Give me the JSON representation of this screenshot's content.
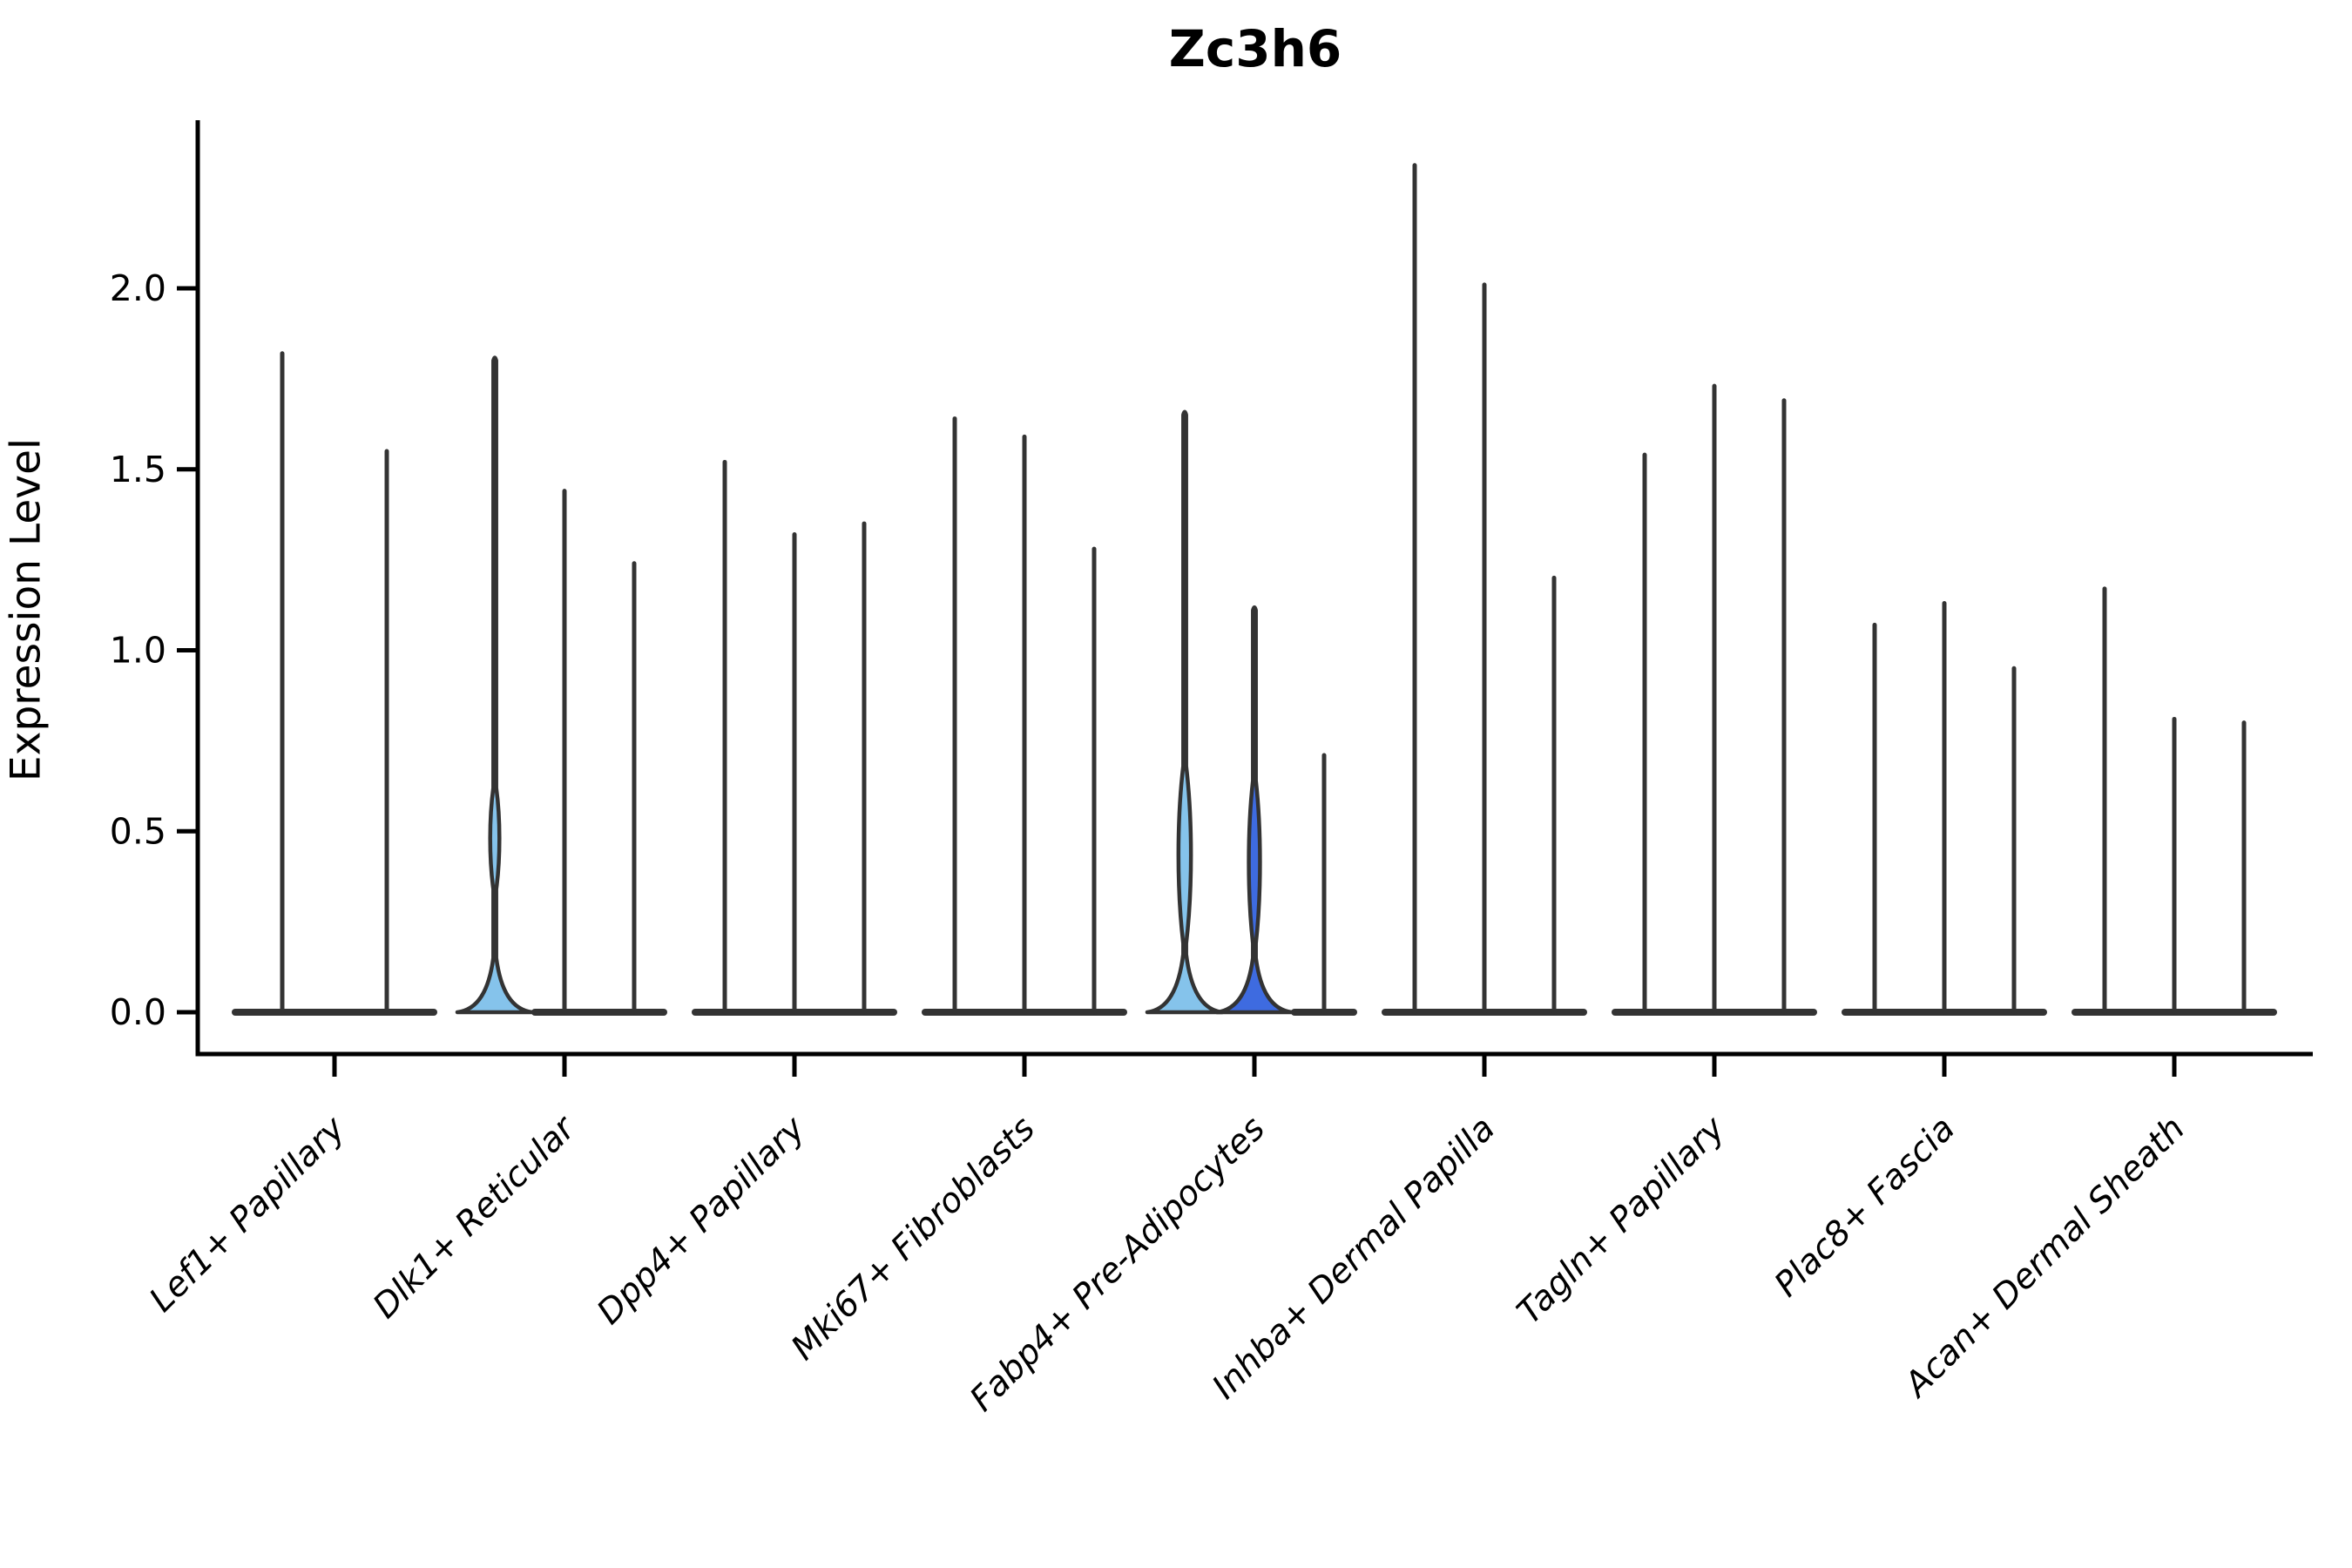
{
  "title": "Zc3h6",
  "ylabel": "Expression Level",
  "chart_data": {
    "type": "violin",
    "title": "Zc3h6",
    "xlabel": "",
    "ylabel": "Expression Level",
    "ylim": [
      0,
      2.46
    ],
    "yticks": [
      {
        "value": 0.0,
        "label": "0.0"
      },
      {
        "value": 0.5,
        "label": "0.5"
      },
      {
        "value": 1.0,
        "label": "1.0"
      },
      {
        "value": 1.5,
        "label": "1.5"
      },
      {
        "value": 2.0,
        "label": "2.0"
      }
    ],
    "grid": false,
    "legend": "none",
    "categories": [
      "Lef1+ Papillary",
      "Dlk1+ Reticular",
      "Dpp4+ Papillary",
      "Mki67+ Fibroblasts",
      "Fabp4+ Pre-Adipocytes",
      "Inhba+ Dermal Papilla",
      "Tagln+ Papillary",
      "Plac8+ Fascia",
      "Acan+ Dermal Sheath"
    ],
    "colors": {
      "stroke": "#333333",
      "light_blue_fill": "#85C3EB",
      "royal_blue_fill": "#3E6BE0",
      "axis": "#000000"
    },
    "groups": [
      {
        "label": "Lef1+ Papillary",
        "violins": [
          {
            "max": 1.82,
            "fill": "none"
          },
          {
            "max": 1.55,
            "fill": "none"
          }
        ]
      },
      {
        "label": "Dlk1+ Reticular",
        "violins": [
          {
            "max": 1.81,
            "fill": "light_blue_fill",
            "base_height": 0.15,
            "bulge": [
              0.34,
              0.62
            ],
            "bulge_halfwidth": 6.5
          },
          {
            "max": 1.44,
            "fill": "none"
          },
          {
            "max": 1.24,
            "fill": "none"
          }
        ]
      },
      {
        "label": "Dpp4+ Papillary",
        "violins": [
          {
            "max": 1.52,
            "fill": "none"
          },
          {
            "max": 1.32,
            "fill": "none"
          },
          {
            "max": 1.35,
            "fill": "none"
          }
        ]
      },
      {
        "label": "Mki67+ Fibroblasts",
        "violins": [
          {
            "max": 1.64,
            "fill": "none"
          },
          {
            "max": 1.59,
            "fill": "none"
          },
          {
            "max": 1.28,
            "fill": "none"
          }
        ]
      },
      {
        "label": "Fabp4+ Pre-Adipocytes",
        "violins": [
          {
            "max": 1.66,
            "fill": "light_blue_fill",
            "base_height": 0.16,
            "bulge": [
              0.19,
              0.68
            ],
            "bulge_halfwidth": 9
          },
          {
            "max": 1.12,
            "fill": "royal_blue_fill",
            "base_height": 0.15,
            "bulge": [
              0.19,
              0.64
            ],
            "bulge_halfwidth": 8
          },
          {
            "max": 0.71,
            "fill": "none"
          }
        ]
      },
      {
        "label": "Inhba+ Dermal Papilla",
        "violins": [
          {
            "max": 2.34,
            "fill": "none"
          },
          {
            "max": 2.01,
            "fill": "none"
          },
          {
            "max": 1.2,
            "fill": "none"
          }
        ]
      },
      {
        "label": "Tagln+ Papillary",
        "violins": [
          {
            "max": 1.54,
            "fill": "none"
          },
          {
            "max": 1.73,
            "fill": "none"
          },
          {
            "max": 1.69,
            "fill": "none"
          }
        ]
      },
      {
        "label": "Plac8+ Fascia",
        "violins": [
          {
            "max": 1.07,
            "fill": "none"
          },
          {
            "max": 1.13,
            "fill": "none"
          },
          {
            "max": 0.95,
            "fill": "none"
          }
        ]
      },
      {
        "label": "Acan+ Dermal Sheath",
        "violins": [
          {
            "max": 1.17,
            "fill": "none"
          },
          {
            "max": 0.81,
            "fill": "none"
          },
          {
            "max": 0.8,
            "fill": "none"
          }
        ]
      }
    ]
  }
}
